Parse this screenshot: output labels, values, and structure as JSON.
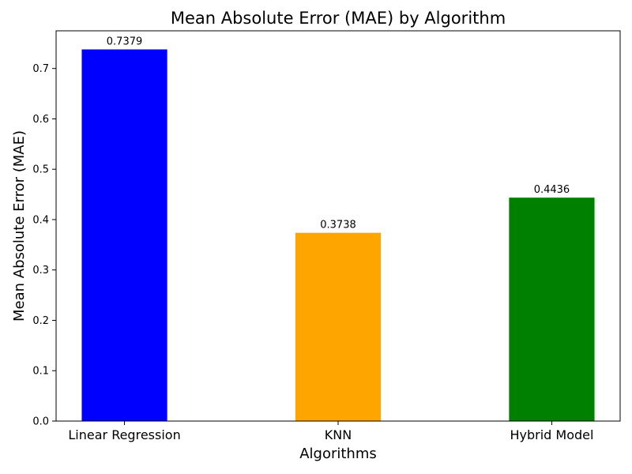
{
  "chart_data": {
    "type": "bar",
    "title": "Mean Absolute Error (MAE) by Algorithm",
    "xlabel": "Algorithms",
    "ylabel": "Mean Absolute Error (MAE)",
    "categories": [
      "Linear Regression",
      "KNN",
      "Hybrid Model"
    ],
    "values": [
      0.7379,
      0.3738,
      0.4436
    ],
    "value_labels": [
      "0.7379",
      "0.3738",
      "0.4436"
    ],
    "colors": [
      "#0000ff",
      "#ffa500",
      "#008000"
    ],
    "ylim": [
      0,
      0.7748
    ],
    "yticks": [
      0.0,
      0.1,
      0.2,
      0.3,
      0.4,
      0.5,
      0.6,
      0.7
    ],
    "ytick_labels": [
      "0.0",
      "0.1",
      "0.2",
      "0.3",
      "0.4",
      "0.5",
      "0.6",
      "0.7"
    ],
    "grid": false,
    "legend": "none"
  }
}
